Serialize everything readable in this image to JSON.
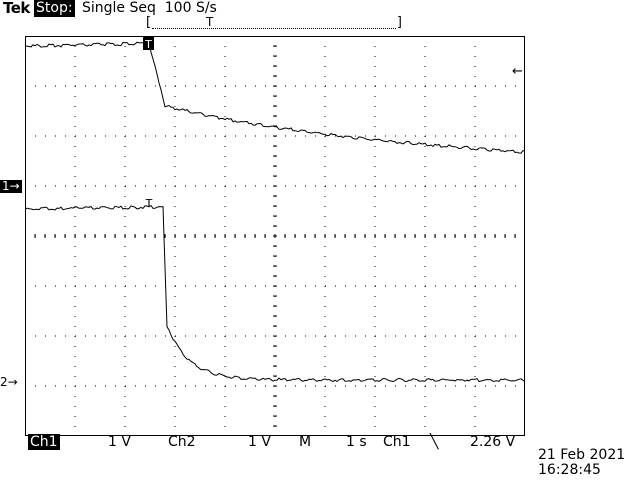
{
  "header": {
    "brand": "Tek",
    "state": "Stop:",
    "acquisition": "Single Seq  100 S/s"
  },
  "record_bar": {
    "left_bracket": "[",
    "right_bracket": "]",
    "trigger_marker": "T"
  },
  "markers": {
    "ch1": "1→",
    "ch2": "2→",
    "trigger_level_arrow": "←",
    "ch1_trigger_flag": "T",
    "ch2_trigger_flag": "T"
  },
  "readout": {
    "ch1_label": "Ch1",
    "ch1_scale": "1 V",
    "ch2_label": "Ch2",
    "ch2_scale": "1 V",
    "mode": "M",
    "timebase": "1 s",
    "trigger_source": "Ch1",
    "slope_icon": "falling-edge-icon",
    "slope_glyph": "╲",
    "trigger_level": "2.26 V"
  },
  "timestamp": {
    "date": "21 Feb 2021",
    "time": "16:28:45"
  },
  "colors": {
    "background": "#ffffff",
    "trace": "#000000",
    "graticule": "#000000"
  }
}
